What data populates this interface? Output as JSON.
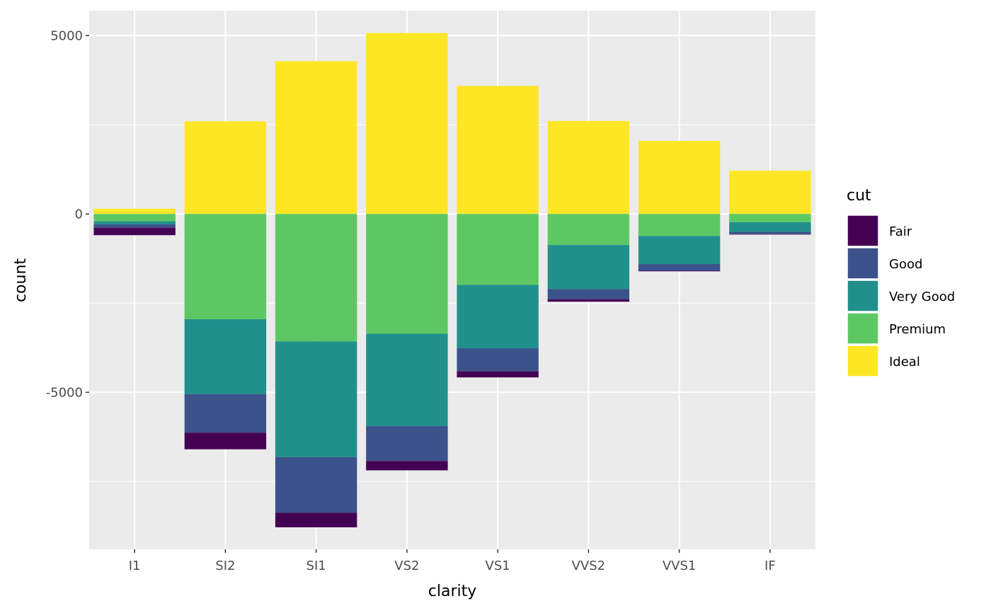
{
  "chart_data": {
    "type": "bar",
    "stacking": "diverging",
    "xlabel": "clarity",
    "ylabel": "count",
    "categories": [
      "I1",
      "SI2",
      "SI1",
      "VS2",
      "VS1",
      "VVS2",
      "VVS1",
      "IF"
    ],
    "ylim": [
      -9400,
      5700
    ],
    "y_ticks": [
      -5000,
      0,
      5000
    ],
    "grid": true,
    "legend": {
      "title": "cut",
      "placement": "right"
    },
    "series": [
      {
        "name": "Fair",
        "color": "#440154",
        "values": [
          -210,
          -466,
          -408,
          -261,
          -170,
          -69,
          -17,
          -9
        ]
      },
      {
        "name": "Good",
        "color": "#3b528b",
        "values": [
          -96,
          -1081,
          -1560,
          -978,
          -648,
          -286,
          -186,
          -71
        ]
      },
      {
        "name": "Very Good",
        "color": "#21908c",
        "values": [
          -84,
          -2100,
          -3240,
          -2591,
          -1775,
          -1235,
          -789,
          -268
        ]
      },
      {
        "name": "Premium",
        "color": "#5dc863",
        "values": [
          -205,
          -2949,
          -3575,
          -3357,
          -1989,
          -870,
          -616,
          -230
        ]
      },
      {
        "name": "Ideal",
        "color": "#fde725",
        "values": [
          146,
          2598,
          4282,
          5071,
          3589,
          2606,
          2047,
          1212
        ]
      }
    ]
  }
}
